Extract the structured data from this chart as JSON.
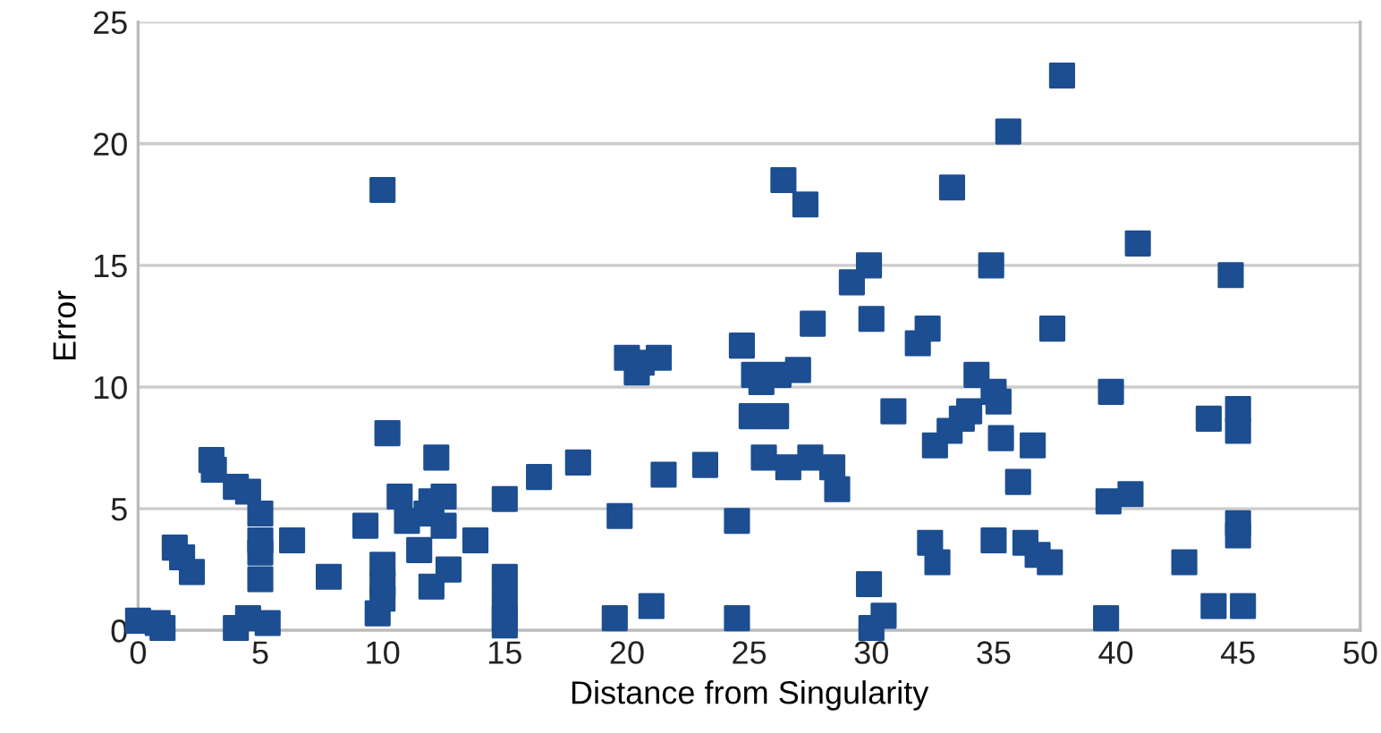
{
  "chart_data": {
    "type": "scatter",
    "xlabel": "Distance from Singularity",
    "ylabel": "Error",
    "xlim": [
      0,
      50
    ],
    "xticks": [
      0,
      5,
      10,
      15,
      20,
      25,
      30,
      35,
      40,
      45,
      50
    ],
    "ylim": [
      0,
      25
    ],
    "yticks": [
      0,
      5,
      10,
      15,
      20,
      25
    ],
    "grid": "y",
    "marker": "square",
    "series": [
      {
        "color": "#1c4e91",
        "x": [
          0,
          0.8,
          1,
          1.5,
          1.8,
          2.2,
          3,
          3.1,
          4,
          4.5,
          4,
          4.5,
          5,
          5,
          5,
          5,
          5.3,
          6.3,
          7.8,
          9.3,
          9.8,
          10,
          10,
          10,
          10,
          10.2,
          10.7,
          11,
          11.5,
          11.8,
          12,
          12,
          12.2,
          12.5,
          12.5,
          12.7,
          13.8,
          15,
          15,
          15,
          15,
          15,
          16.4,
          18,
          19.5,
          19.7,
          20,
          20.4,
          20.6,
          21,
          21.3,
          21.5,
          23.2,
          24.5,
          24.5,
          24.7,
          25.1,
          25.2,
          25.5,
          25.6,
          26.2,
          26.4,
          26.1,
          26.6,
          27,
          27.3,
          27.6,
          27.5,
          28.4,
          28.6,
          29.2,
          29.9,
          30,
          29.9,
          30,
          30.5,
          30.9,
          31.9,
          32.3,
          32.4,
          32.6,
          32.7,
          33.3,
          33.2,
          33.7,
          34,
          34.3,
          34.9,
          35,
          35.2,
          35.6,
          35.3,
          35,
          36,
          36.3,
          36.6,
          36.8,
          37.3,
          37.4,
          37.8,
          39.6,
          39.7,
          39.8,
          40.6,
          40.9,
          42.8,
          43.8,
          44,
          44.7,
          45,
          45,
          45,
          45,
          45.2
        ],
        "values": [
          0.4,
          0.3,
          0.1,
          3.4,
          3,
          2.4,
          7,
          6.6,
          5.9,
          5.7,
          0.1,
          0.5,
          4.8,
          3.7,
          3.2,
          2.1,
          0.3,
          3.7,
          2.2,
          4.3,
          0.7,
          18.1,
          1.3,
          1.9,
          2.7,
          8.1,
          5.5,
          4.5,
          3.3,
          4.8,
          5.3,
          1.8,
          7.1,
          5.5,
          4.3,
          2.5,
          3.7,
          5.4,
          2.2,
          1.2,
          0.5,
          0.2,
          6.3,
          6.9,
          0.5,
          4.7,
          11.2,
          10.6,
          11,
          1,
          11.2,
          6.4,
          6.8,
          4.5,
          0.5,
          11.7,
          8.8,
          10.5,
          10.2,
          7.1,
          10.5,
          18.5,
          8.8,
          6.7,
          10.7,
          17.5,
          12.6,
          7.1,
          6.7,
          5.8,
          14.3,
          15,
          12.8,
          1.9,
          0.1,
          0.6,
          9,
          11.8,
          12.4,
          3.6,
          7.6,
          2.8,
          18.2,
          8.2,
          8.7,
          9,
          10.5,
          15,
          9.8,
          9.4,
          20.5,
          7.9,
          3.7,
          6.1,
          3.6,
          7.6,
          3.1,
          2.8,
          12.4,
          22.8,
          0.5,
          5.3,
          9.8,
          5.6,
          15.9,
          2.8,
          8.7,
          1,
          14.6,
          9.1,
          8.2,
          4.4,
          3.9,
          1
        ]
      }
    ]
  }
}
